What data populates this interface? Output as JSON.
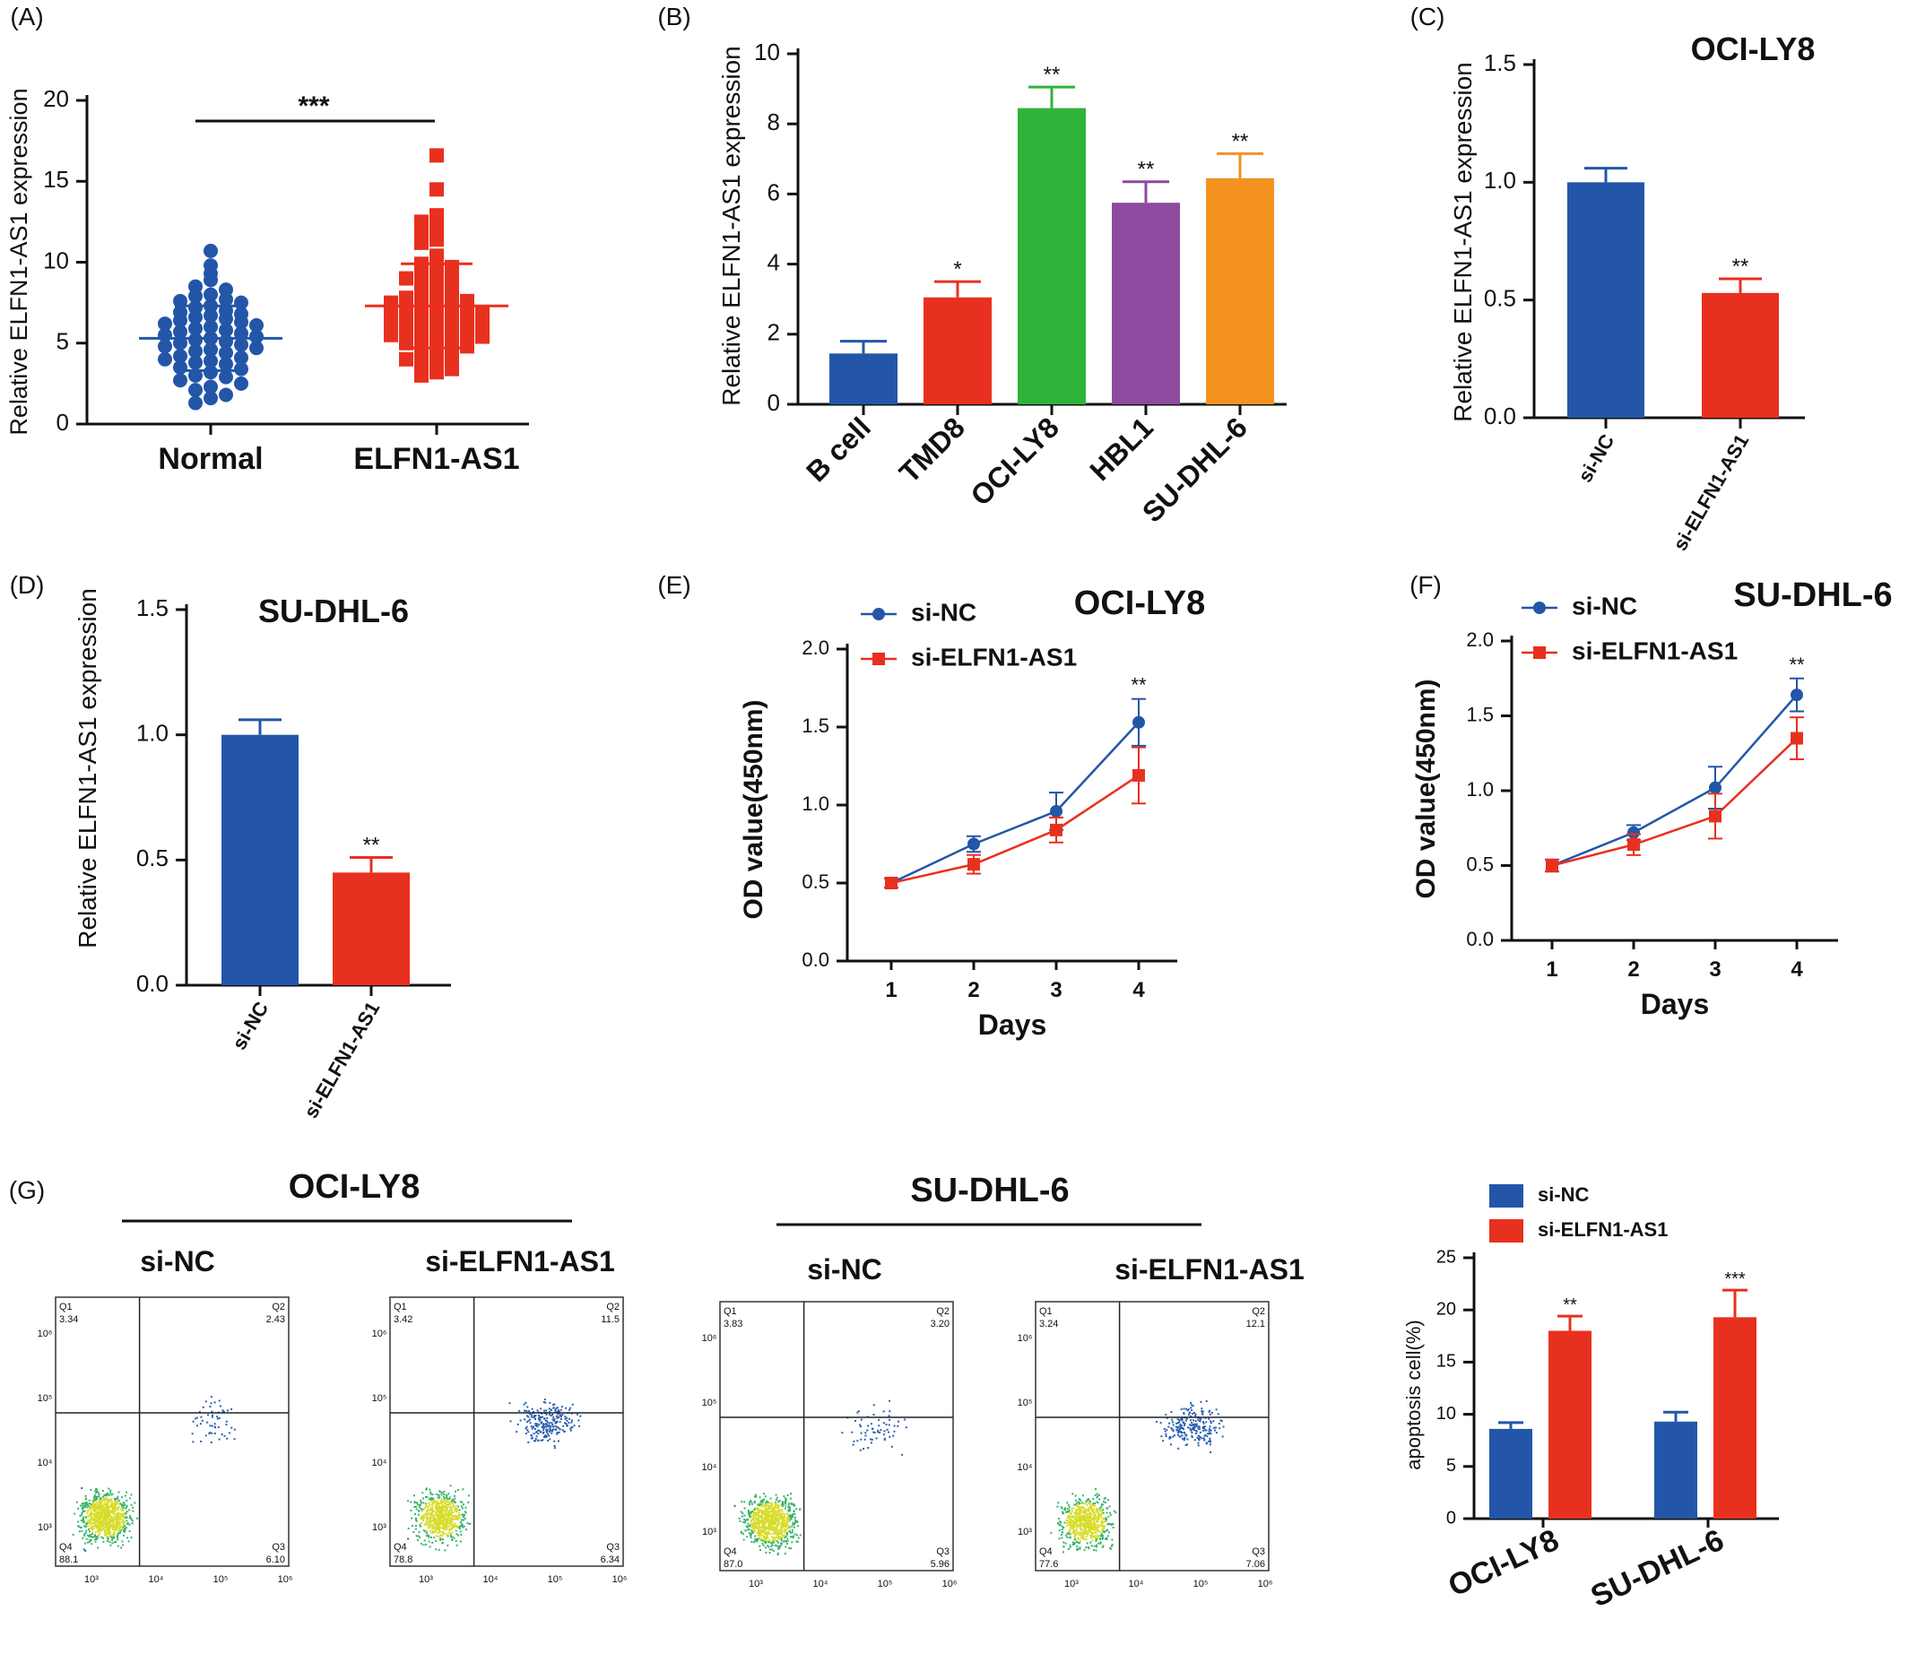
{
  "colors": {
    "blue": "#2356a8",
    "red": "#e8301f",
    "green": "#2fb33a",
    "purple": "#8e4a9e",
    "orange": "#f4931f",
    "axis": "#111111"
  },
  "chart_data": [
    {
      "id": "A",
      "type": "scatter",
      "panel_label": "(A)",
      "ylabel": "Relative ELFN1-AS1 expression",
      "categories": [
        "Normal",
        "ELFN1-AS1"
      ],
      "yticks": [
        0,
        5,
        10,
        15,
        20
      ],
      "ylim": [
        0,
        20
      ],
      "significance": "***",
      "series": [
        {
          "values": [
            10.7,
            9.8,
            9.3,
            8.9,
            8.5,
            8.3,
            8.0,
            7.9,
            7.7,
            7.6,
            7.5,
            7.3,
            7.2,
            7.0,
            6.9,
            6.8,
            6.7,
            6.6,
            6.5,
            6.4,
            6.3,
            6.2,
            6.1,
            6.0,
            5.9,
            5.8,
            5.7,
            5.6,
            5.5,
            5.4,
            5.3,
            5.2,
            5.1,
            5.0,
            4.9,
            4.8,
            4.7,
            4.6,
            4.5,
            4.4,
            4.2,
            4.1,
            4.0,
            3.9,
            3.8,
            3.7,
            3.5,
            3.4,
            3.2,
            3.0,
            2.9,
            2.7,
            2.5,
            2.3,
            2.1,
            1.8,
            1.6,
            1.3
          ],
          "mean": 5.3,
          "sd": 2.0
        },
        {
          "values": [
            16.6,
            14.5,
            12.9,
            12.5,
            12.2,
            11.8,
            11.4,
            11.2,
            10.4,
            10.1,
            9.9,
            9.7,
            9.5,
            9.3,
            9.2,
            9.0,
            8.8,
            8.6,
            8.4,
            8.2,
            8.0,
            7.9,
            7.8,
            7.6,
            7.5,
            7.4,
            7.3,
            7.2,
            7.1,
            7.0,
            6.9,
            6.8,
            6.7,
            6.6,
            6.5,
            6.4,
            6.3,
            6.2,
            6.1,
            6.0,
            5.9,
            5.8,
            5.7,
            5.6,
            5.5,
            5.4,
            5.3,
            5.2,
            5.1,
            5.0,
            4.8,
            4.6,
            4.4,
            4.2,
            4.0,
            3.8,
            3.6,
            3.4,
            3.2,
            3.0
          ],
          "mean": 7.3,
          "sd": 2.6
        }
      ]
    },
    {
      "id": "B",
      "type": "bar",
      "panel_label": "(B)",
      "ylabel": "Relative ELFN1-AS1 expression",
      "categories": [
        "B cell",
        "TMD8",
        "OCI-LY8",
        "HBL1",
        "SU-DHL-6"
      ],
      "values": [
        1.45,
        3.05,
        8.45,
        5.75,
        6.45
      ],
      "errors": [
        0.35,
        0.45,
        0.6,
        0.6,
        0.7
      ],
      "significance": [
        "",
        "*",
        "**",
        "**",
        "**"
      ],
      "yticks": [
        0,
        2,
        4,
        6,
        8,
        10
      ],
      "ylim": [
        0,
        10
      ]
    },
    {
      "id": "C",
      "type": "bar",
      "panel_label": "(C)",
      "title": "OCI-LY8",
      "ylabel": "Relative ELFN1-AS1 expression",
      "categories": [
        "si-NC",
        "si-ELFN1-AS1"
      ],
      "values": [
        1.0,
        0.53
      ],
      "errors": [
        0.06,
        0.06
      ],
      "significance": [
        "",
        "**"
      ],
      "yticks": [
        "0.0",
        "0.5",
        "1.0",
        "1.5"
      ],
      "ylim": [
        0,
        1.5
      ]
    },
    {
      "id": "D",
      "type": "bar",
      "panel_label": "(D)",
      "title": "SU-DHL-6",
      "ylabel": "Relative ELFN1-AS1 expression",
      "categories": [
        "si-NC",
        "si-ELFN1-AS1"
      ],
      "values": [
        1.0,
        0.45
      ],
      "errors": [
        0.06,
        0.06
      ],
      "significance": [
        "",
        "**"
      ],
      "yticks": [
        "0.0",
        "0.5",
        "1.0",
        "1.5"
      ],
      "ylim": [
        0,
        1.5
      ]
    },
    {
      "id": "E",
      "type": "line",
      "panel_label": "(E)",
      "title": "OCI-LY8",
      "xlabel": "Days",
      "ylabel": "OD  value(450nm)",
      "x": [
        1,
        2,
        3,
        4
      ],
      "xticks": [
        "1",
        "2",
        "3",
        "4"
      ],
      "yticks": [
        "0.0",
        "0.5",
        "1.0",
        "1.5",
        "2.0"
      ],
      "ylim": [
        0,
        2
      ],
      "series": [
        {
          "name": "si-NC",
          "values": [
            0.5,
            0.75,
            0.96,
            1.53
          ],
          "errors": [
            0.03,
            0.05,
            0.12,
            0.15
          ]
        },
        {
          "name": "si-ELFN1-AS1",
          "values": [
            0.5,
            0.62,
            0.84,
            1.19
          ],
          "errors": [
            0.03,
            0.06,
            0.08,
            0.18
          ]
        }
      ],
      "significance": "**"
    },
    {
      "id": "F",
      "type": "line",
      "panel_label": "(F)",
      "title": "SU-DHL-6",
      "xlabel": "Days",
      "ylabel": "OD  value(450nm)",
      "x": [
        1,
        2,
        3,
        4
      ],
      "xticks": [
        "1",
        "2",
        "3",
        "4"
      ],
      "yticks": [
        "0.0",
        "0.5",
        "1.0",
        "1.5",
        "2.0"
      ],
      "ylim": [
        0,
        2
      ],
      "series": [
        {
          "name": "si-NC",
          "values": [
            0.5,
            0.72,
            1.02,
            1.64
          ],
          "errors": [
            0.04,
            0.05,
            0.14,
            0.11
          ]
        },
        {
          "name": "si-ELFN1-AS1",
          "values": [
            0.5,
            0.64,
            0.83,
            1.35
          ],
          "errors": [
            0.04,
            0.07,
            0.15,
            0.14
          ]
        }
      ],
      "significance": "**"
    },
    {
      "id": "G-flow",
      "type": "scatter",
      "panel_label": "(G)",
      "groups": [
        {
          "title": "OCI-LY8",
          "plots": [
            {
              "label": "si-NC",
              "q1_label": "Q1",
              "q1": "3.34",
              "q2_label": "Q2",
              "q2": "2.43",
              "q3_label": "Q3",
              "q3": "6.10",
              "q4_label": "Q4",
              "q4": "88.1"
            },
            {
              "label": "si-ELFN1-AS1",
              "q1_label": "Q1",
              "q1": "3.42",
              "q2_label": "Q2",
              "q2": "11.5",
              "q3_label": "Q3",
              "q3": "6.34",
              "q4_label": "Q4",
              "q4": "78.8"
            }
          ]
        },
        {
          "title": "SU-DHL-6",
          "plots": [
            {
              "label": "si-NC",
              "q1_label": "Q1",
              "q1": "3.83",
              "q2_label": "Q2",
              "q2": "3.20",
              "q3_label": "Q3",
              "q3": "5.96",
              "q4_label": "Q4",
              "q4": "87.0"
            },
            {
              "label": "si-ELFN1-AS1",
              "q1_label": "Q1",
              "q1": "3.24",
              "q2_label": "Q2",
              "q2": "12.1",
              "q3_label": "Q3",
              "q3": "7.06",
              "q4_label": "Q4",
              "q4": "77.6"
            }
          ]
        }
      ],
      "axis_ticks": [
        "10³",
        "10⁴",
        "10⁵",
        "10⁶"
      ]
    },
    {
      "id": "G-bar",
      "type": "bar",
      "ylabel": "apoptosis cell(%)",
      "categories": [
        "OCI-LY8",
        "SU-DHL-6"
      ],
      "series": [
        {
          "name": "si-NC",
          "values": [
            8.6,
            9.3
          ],
          "errors": [
            0.6,
            0.9
          ]
        },
        {
          "name": "si-ELFN1-AS1",
          "values": [
            18.0,
            19.3
          ],
          "errors": [
            1.4,
            2.6
          ]
        }
      ],
      "significance": [
        "**",
        "***"
      ],
      "yticks": [
        "0",
        "5",
        "10",
        "15",
        "20",
        "25"
      ],
      "ylim": [
        0,
        25
      ]
    }
  ]
}
